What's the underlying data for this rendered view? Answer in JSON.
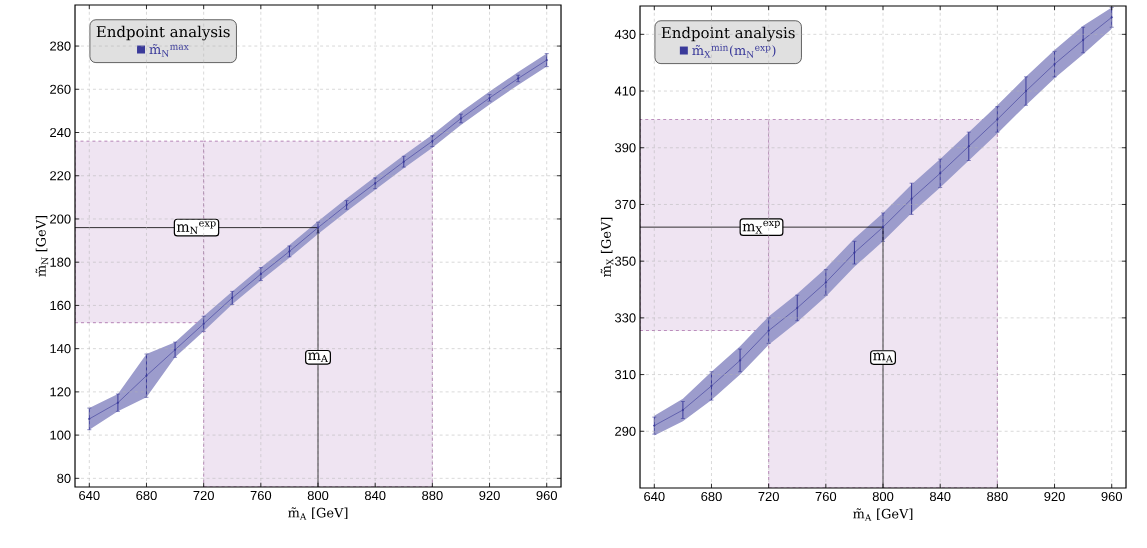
{
  "chart_data": [
    {
      "type": "line",
      "xlabel": "m̃$_{A}$ [GeV]",
      "ylabel": "m̃$_{N}$ [GeV]",
      "legend_title": "Endpoint analysis",
      "x": [
        640,
        660,
        680,
        700,
        720,
        740,
        760,
        780,
        800,
        820,
        840,
        860,
        880,
        900,
        920,
        940,
        960
      ],
      "series": [
        {
          "name": "m̃$_{N}$$^{max}$",
          "color": "#3a3a9a",
          "values": [
            107.5,
            115,
            127.5,
            139.5,
            151.5,
            163.5,
            174.5,
            185,
            196,
            206.5,
            216.5,
            226.5,
            236,
            246.5,
            256,
            265,
            273.5
          ],
          "errors": [
            5,
            4,
            10,
            3.5,
            3.5,
            3,
            3,
            2.5,
            2.5,
            2,
            2.5,
            2.5,
            2.5,
            2,
            1.5,
            1.5,
            3
          ],
          "lower": [
            102.5,
            111,
            117.5,
            136,
            148,
            160.5,
            171.5,
            182,
            193,
            203.5,
            213.5,
            223.5,
            233,
            243.5,
            253,
            262,
            270.5
          ],
          "upper": [
            112.5,
            119,
            137.5,
            143,
            155,
            166.5,
            177.5,
            188,
            199,
            209.5,
            219.5,
            229.5,
            239,
            249.5,
            259,
            268,
            276.5
          ]
        }
      ],
      "xlim": [
        630,
        970
      ],
      "ylim": [
        76,
        299
      ],
      "xticks": [
        640,
        680,
        720,
        760,
        800,
        840,
        880,
        920,
        960
      ],
      "yticks": [
        80,
        100,
        120,
        140,
        160,
        180,
        200,
        220,
        240,
        260,
        280
      ],
      "grid": true,
      "legend": "top left",
      "marker": "circle",
      "line_style": "solid",
      "ref_lines": [
        {
          "axis": "y",
          "value": 196,
          "label": "m$_{N}$$^{exp}$",
          "color": "#000000"
        },
        {
          "axis": "x",
          "value": 800,
          "label": "m$_{A}$",
          "color": "#000000"
        }
      ],
      "bands": [
        {
          "axis": "x",
          "from": 720,
          "to": 880,
          "color": "#efe4f2"
        },
        {
          "axis": "y",
          "from": 152,
          "to": 236,
          "color": "#efe4f2"
        }
      ]
    },
    {
      "type": "line",
      "xlabel": "m̃$_{A}$ [GeV]",
      "ylabel": "m̃$_{X}$ [GeV]",
      "legend_title": "Endpoint analysis",
      "x": [
        640,
        660,
        680,
        700,
        720,
        740,
        760,
        780,
        800,
        820,
        840,
        860,
        880,
        900,
        920,
        940,
        960
      ],
      "series": [
        {
          "name": "m̃$_{X}$$^{min}$(m$_{N}$$^{exp}$)",
          "color": "#3a3a9a",
          "values": [
            292,
            297.5,
            306,
            315,
            325.5,
            333.5,
            342.5,
            353,
            362,
            372,
            381,
            390.5,
            400,
            410,
            419.5,
            428,
            436
          ],
          "errors": [
            3,
            3,
            5,
            4,
            4.5,
            4.5,
            4.5,
            4,
            5,
            5.5,
            5,
            5,
            4.5,
            5,
            4.5,
            4.5,
            3.5
          ],
          "lower": [
            288.5,
            293.5,
            301,
            310,
            320.5,
            328.5,
            337.5,
            348,
            357,
            367,
            376,
            385.5,
            395,
            405,
            414.5,
            423,
            432
          ],
          "upper": [
            295.5,
            301.5,
            311,
            320,
            330.5,
            338.5,
            347.5,
            358,
            367,
            377,
            386,
            395.5,
            405,
            415,
            424.5,
            433,
            439.5
          ]
        }
      ],
      "xlim": [
        630,
        970
      ],
      "ylim": [
        270,
        440
      ],
      "xticks": [
        640,
        680,
        720,
        760,
        800,
        840,
        880,
        920,
        960
      ],
      "yticks": [
        290,
        310,
        330,
        350,
        370,
        390,
        410,
        430
      ],
      "grid": true,
      "legend": "top left",
      "marker": "circle",
      "line_style": "solid",
      "ref_lines": [
        {
          "axis": "y",
          "value": 362,
          "label": "m$_{X}$$^{exp}$",
          "color": "#000000"
        },
        {
          "axis": "x",
          "value": 800,
          "label": "m$_{A}$",
          "color": "#000000"
        }
      ],
      "bands": [
        {
          "axis": "x",
          "from": 720,
          "to": 880,
          "color": "#efe4f2"
        },
        {
          "axis": "y",
          "from": 325.5,
          "to": 400,
          "color": "#efe4f2"
        }
      ]
    }
  ]
}
